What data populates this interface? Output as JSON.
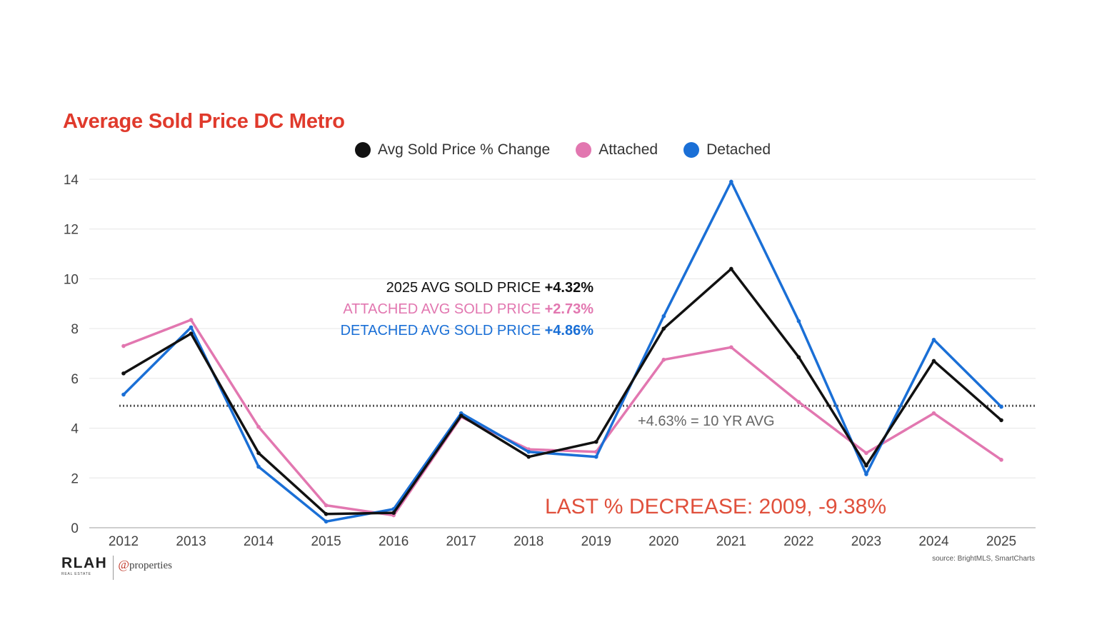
{
  "title": "Average Sold Price DC Metro",
  "legend": [
    {
      "label": "Avg Sold Price % Change",
      "color": "#111111"
    },
    {
      "label": "Attached",
      "color": "#e277b0"
    },
    {
      "label": "Detached",
      "color": "#1a6fd6"
    }
  ],
  "annotations": {
    "avg_line_prefix": "2025 AVG SOLD PRICE ",
    "avg_line_value": "+4.32%",
    "attached_line_prefix": "ATTACHED AVG SOLD PRICE ",
    "attached_line_value": "+2.73%",
    "detached_line_prefix": "DETACHED AVG SOLD PRICE ",
    "detached_line_value": "+4.86%",
    "ten_year_avg": "+4.63% = 10 YR AVG",
    "last_decrease": "LAST % DECREASE: 2009, -9.38%"
  },
  "logo": {
    "brand": "RLAH",
    "brand_sub": "REAL ESTATE",
    "partner_at": "@",
    "partner_text": "properties"
  },
  "source": "source: BrightMLS, SmartCharts",
  "chart_data": {
    "type": "line",
    "x": [
      "2012",
      "2013",
      "2014",
      "2015",
      "2016",
      "2017",
      "2018",
      "2019",
      "2020",
      "2021",
      "2022",
      "2023",
      "2024",
      "2025"
    ],
    "yticks": [
      "0",
      "2",
      "4",
      "6",
      "8",
      "10",
      "12",
      "14"
    ],
    "ylim": [
      0,
      14
    ],
    "grid": true,
    "legend_position": "top-center",
    "reference_line": {
      "value": 4.9,
      "style": "dotted"
    },
    "series": [
      {
        "name": "Attached",
        "color": "#e277b0",
        "values": [
          7.3,
          8.35,
          4.05,
          0.9,
          0.5,
          4.45,
          3.15,
          3.05,
          6.75,
          7.25,
          5.05,
          3.0,
          4.6,
          2.73
        ]
      },
      {
        "name": "Detached",
        "color": "#1a6fd6",
        "values": [
          5.35,
          8.05,
          2.45,
          0.25,
          0.75,
          4.6,
          3.05,
          2.85,
          8.5,
          13.9,
          8.3,
          2.15,
          7.55,
          4.86
        ]
      },
      {
        "name": "Avg Sold Price % Change",
        "color": "#111111",
        "values": [
          6.2,
          7.8,
          3.0,
          0.55,
          0.6,
          4.5,
          2.85,
          3.45,
          8.0,
          10.4,
          6.85,
          2.5,
          6.7,
          4.32
        ]
      }
    ]
  }
}
